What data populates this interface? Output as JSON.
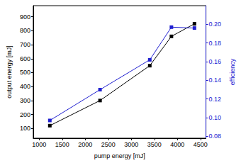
{
  "chart_data": {
    "type": "line",
    "x_label": "pump energy [mJ]",
    "y_label": "output energy [mJ]",
    "y2_label": "efficiency",
    "xlim": [
      870,
      4620
    ],
    "xticks": [
      1000,
      1500,
      2000,
      2500,
      3000,
      3500,
      4000,
      4500
    ],
    "ylim": [
      30,
      980
    ],
    "yticks": [
      100,
      200,
      300,
      400,
      500,
      600,
      700,
      800,
      900
    ],
    "y2lim": [
      0.078,
      0.22
    ],
    "y2ticks": [
      0.08,
      {
        "value": 0.1,
        "label": "0.10"
      },
      0.12,
      0.14,
      0.16,
      0.18,
      {
        "value": 0.2,
        "label": "0.20"
      }
    ],
    "grid": false,
    "series": [
      {
        "name": "output energy",
        "color": "#000000",
        "marker": "square",
        "line_style": "solid",
        "x": [
          1230,
          2320,
          3400,
          3870,
          4370
        ],
        "values": [
          120,
          300,
          550,
          760,
          850
        ]
      },
      {
        "name": "efficiency",
        "color": "#2020d0",
        "marker": "square",
        "line_style": "solid",
        "axis": "y2",
        "x": [
          1230,
          2320,
          3400,
          3870,
          4370
        ],
        "values": [
          0.097,
          0.13,
          0.162,
          0.197,
          0.196
        ]
      }
    ]
  }
}
